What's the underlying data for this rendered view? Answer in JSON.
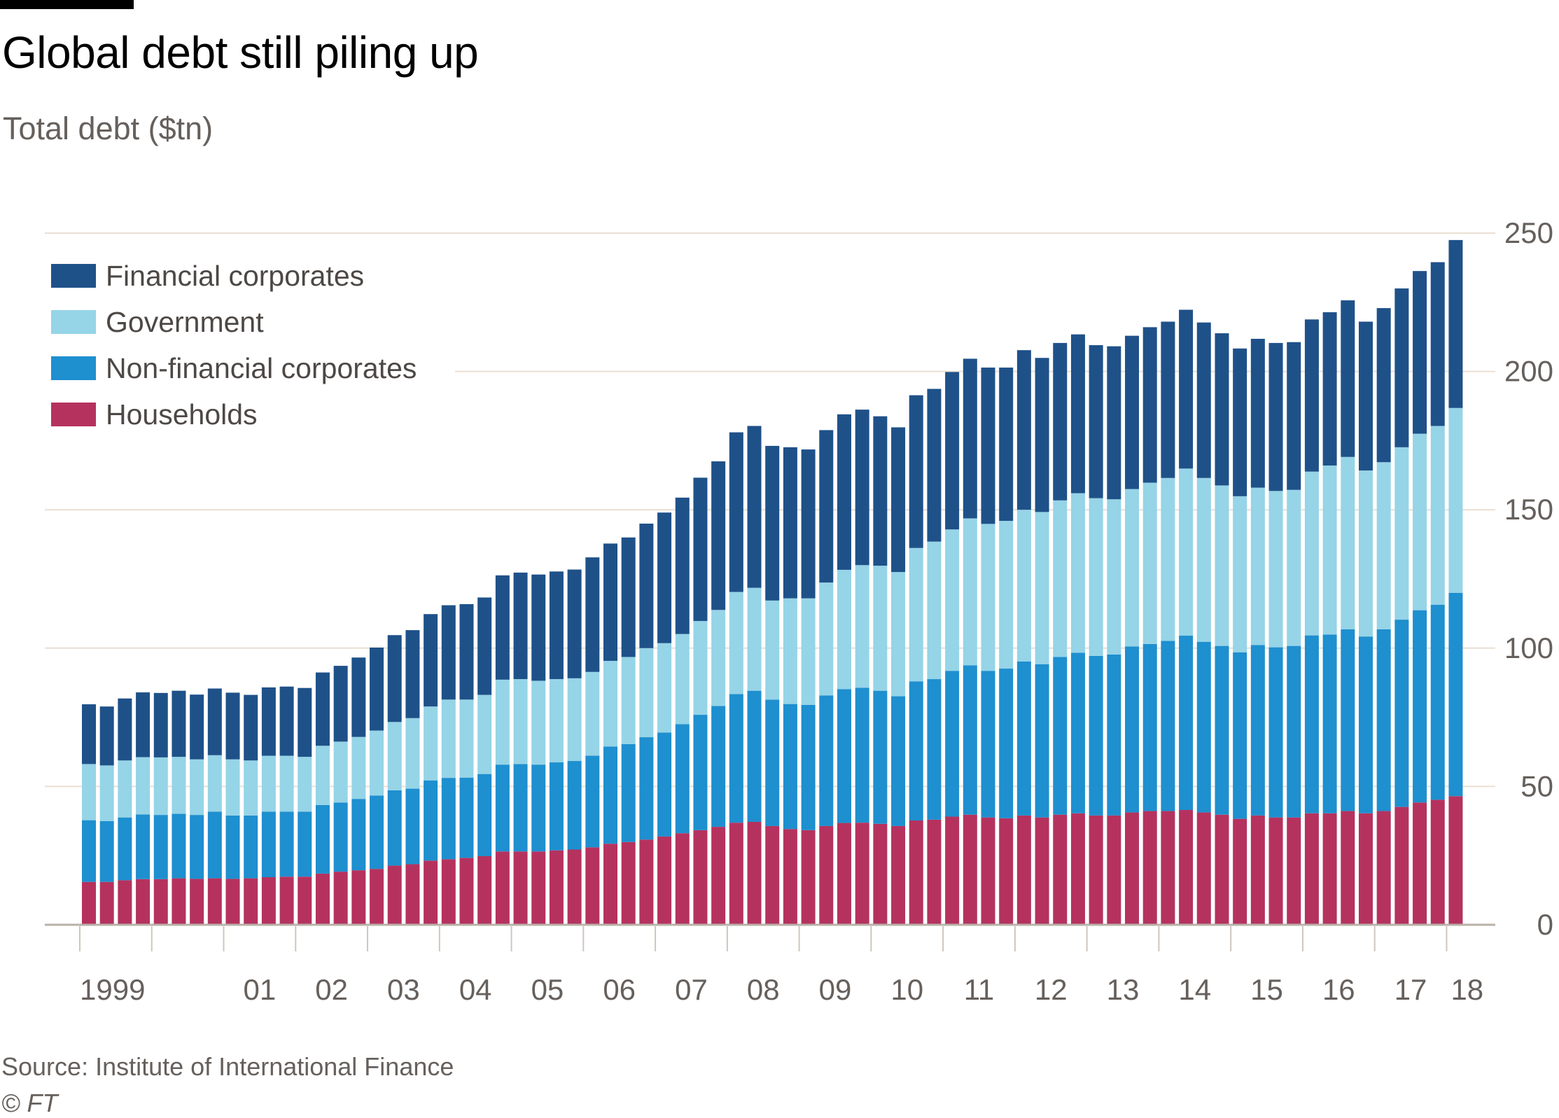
{
  "header": {
    "title": "Global debt still piling up",
    "subtitle": "Total debt ($tn)"
  },
  "footer": {
    "source": "Source: Institute of International Finance",
    "copyright": "© FT"
  },
  "chart_data": {
    "type": "bar",
    "stacked": true,
    "title": "Global debt still piling up",
    "ylabel": "Total debt ($tn)",
    "ylim": [
      0,
      250
    ],
    "yticks": [
      0,
      50,
      100,
      150,
      200,
      250
    ],
    "y_axis_position": "right",
    "grid": true,
    "legend_position": "top-left",
    "xtick_labels": [
      "1999",
      "",
      "01",
      "02",
      "03",
      "04",
      "05",
      "06",
      "07",
      "08",
      "09",
      "10",
      "11",
      "12",
      "13",
      "14",
      "15",
      "16",
      "17",
      "18"
    ],
    "x_frequency": "quarterly",
    "x_start": "1999 Q1",
    "x_end": "2018 Q1",
    "series": [
      {
        "name": "Households",
        "color": "#b5325e",
        "values": [
          15.5,
          15.5,
          16.1,
          16.5,
          16.5,
          16.8,
          16.6,
          16.8,
          16.6,
          16.8,
          17.2,
          17.4,
          17.4,
          18.5,
          19.2,
          19.7,
          20.2,
          21.4,
          21.9,
          23.2,
          23.7,
          24.2,
          24.8,
          26.5,
          26.5,
          26.5,
          26.9,
          27.2,
          28.0,
          29.3,
          29.9,
          30.8,
          31.9,
          33.1,
          34.2,
          35.4,
          36.9,
          37.2,
          35.7,
          34.6,
          34.2,
          35.7,
          36.8,
          36.9,
          36.5,
          35.7,
          37.7,
          38.0,
          39.1,
          39.8,
          38.8,
          38.5,
          39.5,
          38.8,
          39.8,
          40.3,
          39.5,
          39.5,
          40.6,
          41.1,
          41.1,
          41.5,
          40.6,
          39.8,
          38.3,
          39.5,
          38.8,
          38.8,
          40.3,
          40.3,
          41.1,
          40.3,
          41.1,
          42.6,
          44.2,
          45.2,
          46.5
        ]
      },
      {
        "name": "Non-financial corporates",
        "color": "#1e8fcf",
        "values": [
          22.3,
          22.0,
          22.7,
          23.4,
          23.2,
          23.3,
          23.1,
          24.1,
          22.9,
          22.7,
          23.7,
          23.5,
          23.5,
          24.8,
          25.0,
          25.8,
          26.5,
          27.2,
          27.3,
          29.0,
          29.4,
          29.0,
          29.7,
          31.4,
          31.6,
          31.4,
          31.8,
          32.0,
          33.1,
          35.1,
          35.4,
          37.0,
          37.6,
          39.4,
          41.7,
          43.7,
          46.5,
          47.4,
          45.7,
          45.2,
          45.3,
          47.2,
          48.4,
          48.8,
          48.1,
          46.9,
          50.3,
          50.8,
          52.7,
          54.0,
          53.0,
          54.1,
          55.7,
          55.4,
          57.0,
          58.0,
          57.7,
          58.2,
          60.0,
          60.4,
          61.5,
          63.0,
          61.7,
          61.0,
          60.2,
          61.6,
          61.5,
          62.0,
          64.3,
          64.6,
          65.7,
          63.9,
          65.7,
          67.7,
          69.5,
          70.5,
          73.5
        ]
      },
      {
        "name": "Government",
        "color": "#96d4e7",
        "values": [
          20.3,
          20.1,
          20.6,
          20.7,
          20.8,
          20.6,
          20.1,
          20.4,
          20.3,
          19.9,
          20.2,
          20.2,
          19.8,
          21.4,
          22.0,
          22.4,
          23.5,
          24.7,
          25.5,
          26.7,
          28.3,
          28.2,
          28.6,
          30.7,
          30.7,
          30.3,
          30.1,
          29.9,
          30.3,
          31.0,
          31.5,
          32.2,
          32.3,
          32.6,
          33.9,
          34.7,
          36.9,
          37.2,
          35.8,
          38.2,
          38.5,
          40.8,
          43.1,
          44.3,
          45.2,
          44.9,
          48.2,
          49.7,
          51.1,
          53.1,
          53.1,
          53.4,
          54.8,
          55.0,
          56.6,
          57.7,
          57.0,
          56.1,
          56.9,
          58.3,
          58.9,
          60.4,
          59.2,
          58.0,
          56.4,
          56.9,
          56.5,
          56.4,
          59.2,
          61.1,
          62.3,
          60.0,
          60.4,
          62.3,
          63.8,
          64.6,
          66.8
        ]
      },
      {
        "name": "Financial corporates",
        "color": "#1f5189",
        "values": [
          21.6,
          21.3,
          22.4,
          23.4,
          23.3,
          23.9,
          23.4,
          24.1,
          24.1,
          23.7,
          24.7,
          25.0,
          24.9,
          26.5,
          27.4,
          28.7,
          30.0,
          31.4,
          31.8,
          33.4,
          34.1,
          34.5,
          35.2,
          37.7,
          38.5,
          38.4,
          38.9,
          39.3,
          41.4,
          42.4,
          43.2,
          45.0,
          47.2,
          49.3,
          51.8,
          53.7,
          57.7,
          58.5,
          55.9,
          54.6,
          53.8,
          55.1,
          56.2,
          56.2,
          54.0,
          52.3,
          55.2,
          55.2,
          56.9,
          57.7,
          56.5,
          55.4,
          57.7,
          55.7,
          56.9,
          57.4,
          55.3,
          55.3,
          55.4,
          56.2,
          56.5,
          57.4,
          56.2,
          55.0,
          53.4,
          53.8,
          53.5,
          53.4,
          55.0,
          55.4,
          56.6,
          53.8,
          55.7,
          57.4,
          58.8,
          59.2,
          60.7
        ]
      }
    ],
    "legend": [
      "Financial corporates",
      "Government",
      "Non-financial corporates",
      "Households"
    ]
  }
}
